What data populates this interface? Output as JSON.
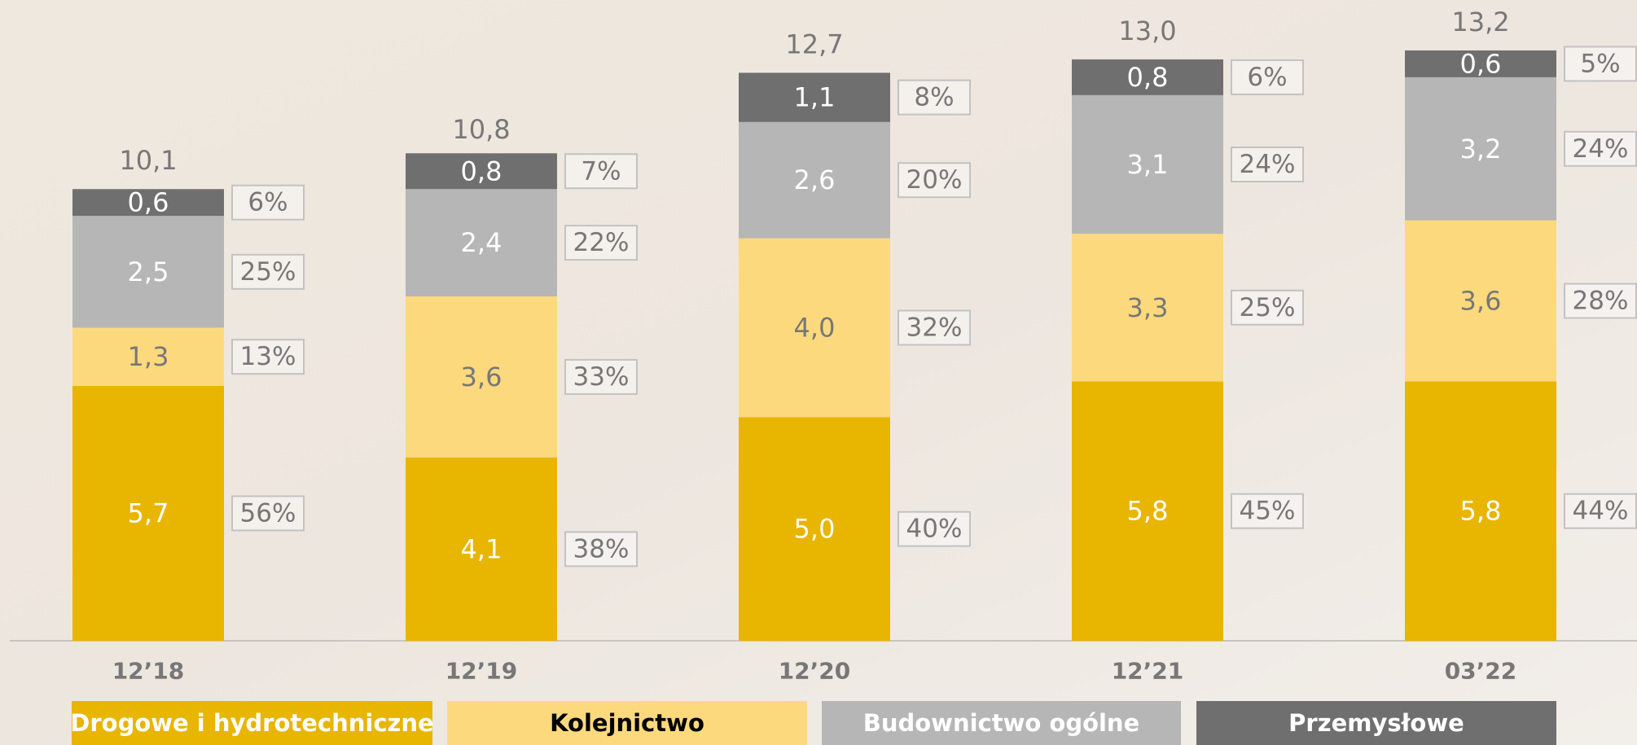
{
  "chart_data": {
    "type": "stacked_bar",
    "categories": [
      "12’18",
      "12’19",
      "12’20",
      "12’21",
      "03’22"
    ],
    "ylim": [
      0,
      14
    ],
    "series": [
      {
        "name": "Drogowe i hydrotechniczne",
        "color": "#e8b500",
        "label_color": "#ffffff",
        "values": [
          5.7,
          4.1,
          5.0,
          5.8,
          5.8
        ],
        "value_labels": [
          "5,7",
          "4,1",
          "5,0",
          "5,8",
          "5,8"
        ],
        "shares": [
          56,
          38,
          40,
          45,
          44
        ],
        "share_labels": [
          "56%",
          "38%",
          "40%",
          "45%",
          "44%"
        ]
      },
      {
        "name": "Kolejnictwo",
        "color": "#fdd97e",
        "label_color": "#777777",
        "values": [
          1.3,
          3.6,
          4.0,
          3.3,
          3.6
        ],
        "value_labels": [
          "1,3",
          "3,6",
          "4,0",
          "3,3",
          "3,6"
        ],
        "shares": [
          13,
          33,
          32,
          25,
          28
        ],
        "share_labels": [
          "13%",
          "33%",
          "32%",
          "25%",
          "28%"
        ]
      },
      {
        "name": "Budownictwo ogólne",
        "color": "#b5b6b5",
        "label_color": "#ffffff",
        "values": [
          2.5,
          2.4,
          2.6,
          3.1,
          3.2
        ],
        "value_labels": [
          "2,5",
          "2,4",
          "2,6",
          "3,1",
          "3,2"
        ],
        "shares": [
          25,
          22,
          20,
          24,
          24
        ],
        "share_labels": [
          "25%",
          "22%",
          "20%",
          "24%",
          "24%"
        ]
      },
      {
        "name": "Przemysłowe",
        "color": "#6f6f70",
        "label_color": "#ffffff",
        "values": [
          0.6,
          0.8,
          1.1,
          0.8,
          0.6
        ],
        "value_labels": [
          "0,6",
          "0,8",
          "1,1",
          "0,8",
          "0,6"
        ],
        "shares": [
          6,
          7,
          8,
          6,
          5
        ],
        "share_labels": [
          "6%",
          "7%",
          "8%",
          "6%",
          "5%"
        ]
      }
    ],
    "totals": [
      10.1,
      10.8,
      12.7,
      13.0,
      13.2
    ],
    "total_labels": [
      "10,1",
      "10,8",
      "12,7",
      "13,0",
      "13,2"
    ]
  }
}
